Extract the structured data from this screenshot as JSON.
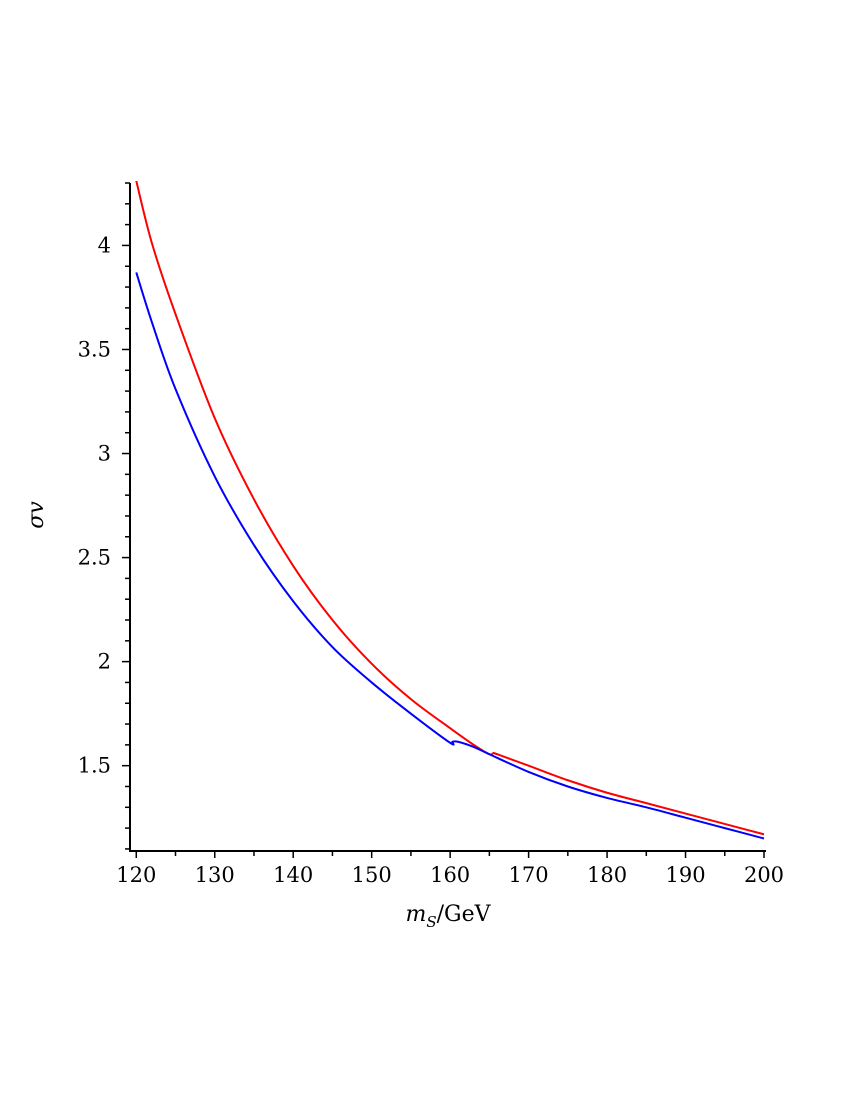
{
  "chart_data": {
    "type": "line",
    "xlabel": {
      "main": "m",
      "sub": "S",
      "rest": "/GeV"
    },
    "ylabel": "σv",
    "xlim": [
      119.2,
      200
    ],
    "ylim": [
      1.09,
      4.3
    ],
    "xticks": [
      120,
      130,
      140,
      150,
      160,
      170,
      180,
      190,
      200
    ],
    "xtick_labels": [
      "120",
      "130",
      "140",
      "150",
      "160",
      "170",
      "180",
      "190",
      "200"
    ],
    "yticks": [
      1.5,
      2,
      2.5,
      3,
      3.5,
      4
    ],
    "ytick_labels": [
      "1.5",
      "2",
      "2.5",
      "3",
      "3.5",
      "4"
    ],
    "grid": false,
    "series": [
      {
        "color": "#ff0000",
        "x": [
          120,
          122,
          125,
          130,
          135,
          140,
          145,
          150,
          155,
          160,
          163,
          165,
          165.5,
          166,
          170,
          175,
          180,
          185,
          190,
          195,
          200
        ],
        "y": [
          4.31,
          4.01,
          3.67,
          3.17,
          2.78,
          2.46,
          2.2,
          1.99,
          1.82,
          1.68,
          1.6,
          1.555,
          1.56,
          1.555,
          1.5,
          1.43,
          1.37,
          1.32,
          1.27,
          1.22,
          1.17
        ]
      },
      {
        "color": "#0000ff",
        "x": [
          120,
          122,
          125,
          130,
          135,
          140,
          145,
          150,
          155,
          160,
          160.3,
          161,
          163,
          165,
          170,
          175,
          180,
          185,
          190,
          195,
          200
        ],
        "y": [
          3.87,
          3.63,
          3.31,
          2.89,
          2.56,
          2.29,
          2.07,
          1.9,
          1.75,
          1.61,
          1.615,
          1.615,
          1.59,
          1.555,
          1.47,
          1.4,
          1.345,
          1.3,
          1.25,
          1.2,
          1.15
        ]
      }
    ]
  }
}
